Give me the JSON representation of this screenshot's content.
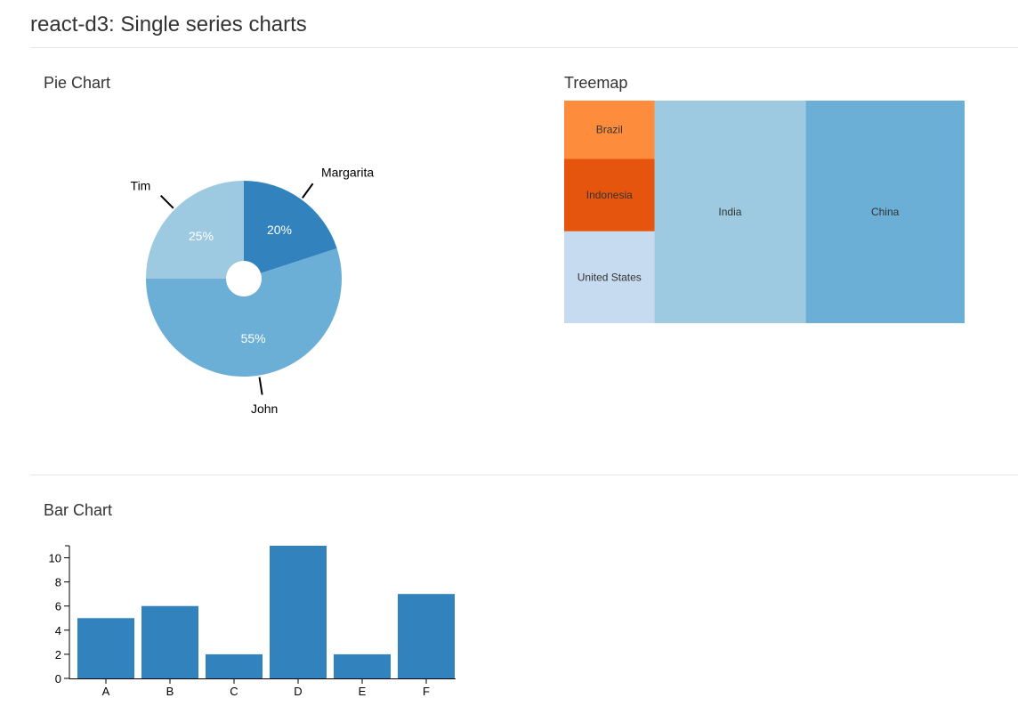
{
  "page": {
    "title": "react-d3: Single series charts"
  },
  "pie_section": {
    "title": "Pie Chart"
  },
  "treemap_section": {
    "title": "Treemap"
  },
  "bar_section": {
    "title": "Bar Chart"
  },
  "chart_data": [
    {
      "id": "pie",
      "type": "pie",
      "title": "Pie Chart",
      "slices": [
        {
          "label": "Margarita",
          "value": 20,
          "value_label": "20%",
          "color": "#3182bd"
        },
        {
          "label": "John",
          "value": 55,
          "value_label": "55%",
          "color": "#6baed6"
        },
        {
          "label": "Tim",
          "value": 25,
          "value_label": "25%",
          "color": "#9ecae1"
        }
      ]
    },
    {
      "id": "treemap",
      "type": "treemap",
      "title": "Treemap",
      "items": [
        {
          "label": "China",
          "value": 1364,
          "color": "#6baed6"
        },
        {
          "label": "India",
          "value": 1296,
          "color": "#9ecae1"
        },
        {
          "label": "United States",
          "value": 320,
          "color": "#c6dbef"
        },
        {
          "label": "Indonesia",
          "value": 252,
          "color": "#e6550d"
        },
        {
          "label": "Brazil",
          "value": 203,
          "color": "#fd8d3c"
        }
      ]
    },
    {
      "id": "bar",
      "type": "bar",
      "title": "Bar Chart",
      "categories": [
        "A",
        "B",
        "C",
        "D",
        "E",
        "F"
      ],
      "values": [
        5,
        6,
        2,
        11,
        2,
        7
      ],
      "ylim": [
        0,
        11
      ],
      "yticks": [
        0,
        2,
        4,
        6,
        8,
        10
      ],
      "bar_color": "#3182bd"
    }
  ]
}
